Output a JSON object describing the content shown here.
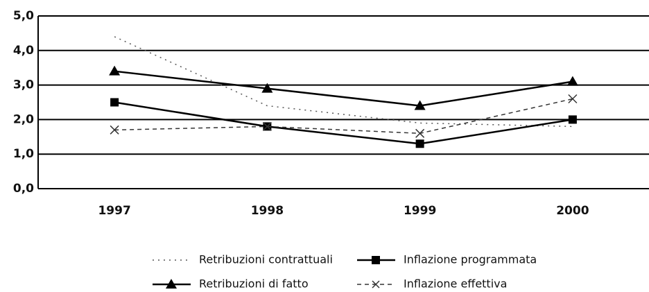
{
  "chart_data": {
    "type": "line",
    "categories": [
      "1997",
      "1998",
      "1999",
      "2000"
    ],
    "series": [
      {
        "name": "Retribuzioni contrattuali",
        "color": "#555555",
        "values": [
          4.4,
          2.4,
          1.9,
          1.8
        ]
      },
      {
        "name": "Inflazione programmata",
        "color": "#000000",
        "values": [
          2.5,
          1.8,
          1.3,
          2.0
        ]
      },
      {
        "name": "Retribuzioni di fatto",
        "color": "#000000",
        "values": [
          3.4,
          2.9,
          2.4,
          3.1
        ]
      },
      {
        "name": "Inflazione effettiva",
        "color": "#333333",
        "values": [
          1.7,
          1.8,
          1.6,
          2.6
        ]
      }
    ],
    "ylim": [
      0,
      5
    ],
    "yticks": [
      {
        "value": 0,
        "label": "0,0"
      },
      {
        "value": 1,
        "label": "1,0"
      },
      {
        "value": 2,
        "label": "2,0"
      },
      {
        "value": 3,
        "label": "3,0"
      },
      {
        "value": 4,
        "label": "4,0"
      },
      {
        "value": 5,
        "label": "5,0"
      }
    ],
    "grid": true
  }
}
